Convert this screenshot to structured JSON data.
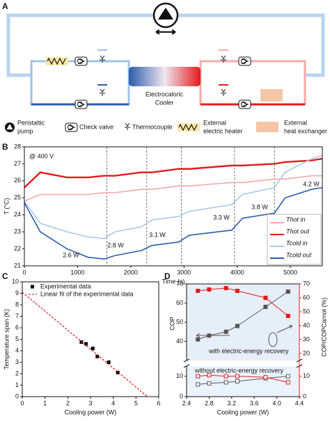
{
  "figure": {
    "panels": [
      "A",
      "B",
      "C",
      "D"
    ]
  },
  "diagram": {
    "cooler_label": [
      "Electrocaloric",
      "Cooler"
    ],
    "legend": [
      {
        "label": [
          "Peristaltic",
          "pump"
        ]
      },
      {
        "label": [
          "Check valve"
        ]
      },
      {
        "label": [
          "Thermocouple"
        ]
      },
      {
        "label": [
          "External",
          "electric heater"
        ]
      },
      {
        "label": [
          "External",
          "heat exchanger"
        ]
      }
    ]
  },
  "chart_data": [
    {
      "type": "line",
      "xlabel": "Time (s)",
      "ylabel": "T (°C)",
      "annotations": [
        "@ 400 V",
        "2.6 W",
        "2.8 W",
        "3.1 W",
        "3.3 W",
        "3.8 W",
        "4.2 W"
      ],
      "vlines": [
        1550,
        2300,
        2950,
        3950,
        4700
      ],
      "x": [
        0,
        300,
        800,
        1200,
        1500,
        1700,
        2200,
        2400,
        2900,
        3100,
        3900,
        4100,
        4700,
        4900,
        5400,
        5600
      ],
      "series": [
        {
          "name": "Thot in",
          "color": "#f2a8ae",
          "values": [
            24.8,
            25.2,
            25.2,
            25.2,
            25.3,
            25.3,
            25.5,
            25.5,
            25.7,
            25.7,
            25.9,
            25.9,
            26.1,
            26.1,
            26.3,
            26.3
          ]
        },
        {
          "name": "Thot out",
          "color": "#e31a1c",
          "values": [
            25.6,
            26.5,
            26.2,
            26.2,
            26.3,
            26.3,
            26.5,
            26.5,
            26.7,
            26.7,
            26.9,
            26.9,
            27.0,
            27.1,
            27.2,
            27.3
          ]
        },
        {
          "name": "Tcold in",
          "color": "#a8c8e8",
          "values": [
            24.8,
            23.5,
            23.0,
            22.7,
            22.6,
            23.0,
            23.3,
            23.7,
            23.9,
            24.2,
            24.6,
            25.2,
            25.6,
            26.5,
            27.3,
            27.5
          ]
        },
        {
          "name": "Tcold out",
          "color": "#2a5caa",
          "values": [
            24.7,
            23.0,
            22.0,
            21.5,
            21.4,
            21.6,
            21.9,
            22.2,
            22.4,
            22.8,
            23.1,
            23.8,
            24.1,
            25.0,
            25.5,
            25.6
          ]
        }
      ],
      "xlim": [
        0,
        5600
      ],
      "ylim": [
        21,
        28
      ],
      "xticks": [
        0,
        1000,
        2000,
        3000,
        4000,
        5000
      ],
      "yticks": [
        21,
        22,
        23,
        24,
        25,
        26,
        27,
        28
      ],
      "legend": "lower right"
    },
    {
      "type": "scatter",
      "xlabel": "Cooling power (W)",
      "ylabel": "Temperature span (K)",
      "series": [
        {
          "name": "Experimental data",
          "color": "#000000",
          "x": [
            2.6,
            2.8,
            3.1,
            3.3,
            3.8,
            4.2
          ],
          "values": [
            4.75,
            4.6,
            4.2,
            3.5,
            3.0,
            2.1
          ]
        },
        {
          "name": "Linear fit of the experimental data",
          "color": "#e31a1c",
          "style": "dashed",
          "x": [
            0,
            5.5
          ],
          "values": [
            9.1,
            0
          ]
        }
      ],
      "xlim": [
        0,
        6
      ],
      "ylim": [
        0,
        10
      ],
      "xticks": [
        0,
        1,
        2,
        3,
        4,
        5,
        6
      ],
      "yticks": [
        0,
        1,
        2,
        3,
        4,
        5,
        6,
        7,
        8,
        9,
        10
      ],
      "legend": "upper left"
    },
    {
      "type": "line",
      "xlabel": "Cooling power (W)",
      "ylabel": "COP",
      "y2label": "COP/COPCarnot (%)",
      "annotations": [
        "with electric-energy recovery",
        "without electric-energy recovery"
      ],
      "x": [
        2.6,
        2.8,
        3.1,
        3.3,
        3.8,
        4.2
      ],
      "series": [
        {
          "color": "#555555",
          "marker": "filled",
          "values": [
            41,
            43,
            45,
            48,
            58,
            66
          ]
        },
        {
          "color": "#e31a1c",
          "marker": "filled",
          "axis": "y2",
          "values": [
            65,
            66,
            67,
            65,
            60,
            47
          ]
        },
        {
          "color": "#555555",
          "marker": "open",
          "values": [
            6,
            6.5,
            7,
            7.5,
            9,
            10
          ]
        },
        {
          "color": "#e31a1c",
          "marker": "open",
          "axis": "y2",
          "values": [
            10,
            10.5,
            10,
            10,
            9.5,
            7
          ]
        }
      ],
      "xlim": [
        2.4,
        4.4
      ],
      "xticks": [
        2.4,
        2.8,
        3.2,
        3.6,
        {
          "value": 4,
          "label": "4.0"
        },
        4.4
      ],
      "ylim": [
        0,
        70
      ],
      "yticks": [
        0,
        10,
        40,
        50,
        60,
        70
      ],
      "ybreak": [
        15,
        30
      ],
      "y2lim": [
        0,
        70
      ],
      "y2ticks": [
        0,
        10,
        20,
        30,
        40,
        50,
        60,
        70
      ],
      "y2break": [
        15,
        15
      ]
    }
  ]
}
